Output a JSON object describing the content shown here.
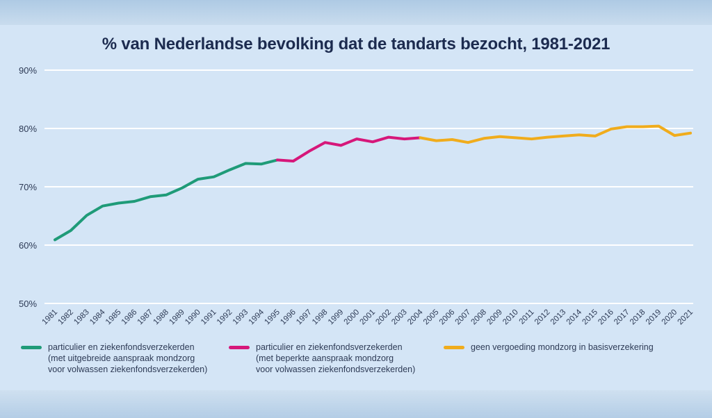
{
  "chart_data": {
    "type": "line",
    "title": "% van Nederlandse bevolking dat de tandarts bezocht, 1981-2021",
    "xlabel": "",
    "ylabel": "",
    "ylim": [
      50,
      90
    ],
    "yticks": [
      50,
      60,
      70,
      80,
      90
    ],
    "ytick_labels": [
      "50%",
      "60%",
      "70%",
      "80%",
      "90%"
    ],
    "grid": true,
    "categories": [
      "1981",
      "1982",
      "1983",
      "1984",
      "1985",
      "1986",
      "1987",
      "1988",
      "1989",
      "1990",
      "1991",
      "1992",
      "1993",
      "1994",
      "1995",
      "1996",
      "1997",
      "1998",
      "1999",
      "2000",
      "2001",
      "2002",
      "2003",
      "2004",
      "2005",
      "2006",
      "2007",
      "2008",
      "2009",
      "2010",
      "2011",
      "2012",
      "2013",
      "2014",
      "2015",
      "2016",
      "2017",
      "2018",
      "2019",
      "2020",
      "2021"
    ],
    "series": [
      {
        "name": "particulier en ziekenfondsverzekerden (met uitgebreide aanspraak mondzorg voor volwassen ziekenfondsverzekerden)",
        "color": "#1f9b78",
        "x": [
          "1981",
          "1982",
          "1983",
          "1984",
          "1985",
          "1986",
          "1987",
          "1988",
          "1989",
          "1990",
          "1991",
          "1992",
          "1993",
          "1994",
          "1995"
        ],
        "values": [
          60.9,
          62.5,
          65.1,
          66.7,
          67.2,
          67.5,
          68.3,
          68.6,
          69.8,
          71.3,
          71.7,
          72.9,
          74.0,
          73.9,
          74.6
        ]
      },
      {
        "name": "particulier en ziekenfondsverzekerden (met beperkte aanspraak mondzorg voor volwassen ziekenfondsverzekerden)",
        "color": "#d6177a",
        "x": [
          "1995",
          "1996",
          "1997",
          "1998",
          "1999",
          "2000",
          "2001",
          "2002",
          "2003",
          "2004"
        ],
        "values": [
          74.6,
          74.4,
          76.1,
          77.6,
          77.1,
          78.2,
          77.7,
          78.5,
          78.2,
          78.4
        ]
      },
      {
        "name": "geen vergoeding mondzorg in basisverzekering",
        "color": "#f0ac1c",
        "x": [
          "2004",
          "2005",
          "2006",
          "2007",
          "2008",
          "2009",
          "2010",
          "2011",
          "2012",
          "2013",
          "2014",
          "2015",
          "2016",
          "2017",
          "2018",
          "2019",
          "2020",
          "2021"
        ],
        "values": [
          78.4,
          77.9,
          78.1,
          77.6,
          78.3,
          78.6,
          78.4,
          78.2,
          78.5,
          78.7,
          78.9,
          78.7,
          79.9,
          80.3,
          80.3,
          80.4,
          78.8,
          79.2
        ]
      }
    ],
    "legend": [
      {
        "lines": [
          "particulier en ziekenfondsverzekerden",
          "(met uitgebreide aanspraak mondzorg",
          "voor volwassen ziekenfondsverzekerden)"
        ],
        "color": "#1f9b78"
      },
      {
        "lines": [
          "particulier en ziekenfondsverzekerden",
          "(met beperkte aanspraak mondzorg",
          "voor volwassen ziekenfondsverzekerden)"
        ],
        "color": "#d6177a"
      },
      {
        "lines": [
          "geen vergoeding mondzorg in basisverzekering"
        ],
        "color": "#f0ac1c"
      }
    ],
    "legend_position": "bottom"
  }
}
